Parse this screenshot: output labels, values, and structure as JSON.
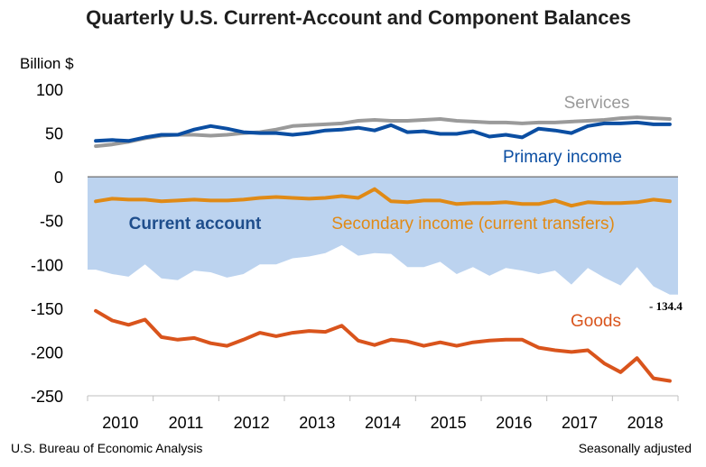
{
  "chart_data": {
    "type": "line",
    "title": "Quarterly U.S. Current-Account and Component Balances",
    "ylabel": "Billion $",
    "ylim": [
      -250,
      100
    ],
    "yticks": [
      "100",
      "50",
      "0",
      "-50",
      "-100",
      "-150",
      "-200",
      "-250"
    ],
    "xtick_labels": [
      "2010",
      "2011",
      "2012",
      "2013",
      "2014",
      "2015",
      "2016",
      "2017",
      "2018"
    ],
    "quarters": [
      "2010Q1",
      "2010Q2",
      "2010Q3",
      "2010Q4",
      "2011Q1",
      "2011Q2",
      "2011Q3",
      "2011Q4",
      "2012Q1",
      "2012Q2",
      "2012Q3",
      "2012Q4",
      "2013Q1",
      "2013Q2",
      "2013Q3",
      "2013Q4",
      "2014Q1",
      "2014Q2",
      "2014Q3",
      "2014Q4",
      "2015Q1",
      "2015Q2",
      "2015Q3",
      "2015Q4",
      "2016Q1",
      "2016Q2",
      "2016Q3",
      "2016Q4",
      "2017Q1",
      "2017Q2",
      "2017Q3",
      "2017Q4",
      "2018Q1",
      "2018Q2",
      "2018Q3",
      "2018Q4"
    ],
    "series": [
      {
        "name": "Services",
        "type": "line",
        "color": "#9a9a9a",
        "values": [
          35,
          37,
          40,
          44,
          47,
          48,
          48,
          47,
          48,
          50,
          51,
          54,
          58,
          59,
          60,
          61,
          64,
          65,
          64,
          64,
          65,
          66,
          64,
          63,
          62,
          62,
          61,
          62,
          62,
          63,
          64,
          65,
          67,
          68,
          67,
          66
        ]
      },
      {
        "name": "Primary income",
        "type": "line",
        "color": "#0b4ea2",
        "values": [
          41,
          42,
          41,
          45,
          48,
          48,
          54,
          58,
          55,
          51,
          50,
          50,
          48,
          50,
          53,
          54,
          56,
          53,
          59,
          51,
          52,
          49,
          49,
          52,
          46,
          48,
          45,
          55,
          53,
          50,
          58,
          61,
          61,
          62,
          60,
          60
        ]
      },
      {
        "name": "Secondary income (current transfers)",
        "type": "line",
        "color": "#e08a16",
        "values": [
          -28,
          -25,
          -26,
          -26,
          -28,
          -27,
          -26,
          -27,
          -27,
          -26,
          -24,
          -23,
          -24,
          -25,
          -24,
          -22,
          -24,
          -14,
          -28,
          -29,
          -27,
          -27,
          -31,
          -30,
          -30,
          -29,
          -31,
          -31,
          -27,
          -33,
          -29,
          -30,
          -30,
          -29,
          -26,
          -28
        ]
      },
      {
        "name": "Current account",
        "type": "area",
        "color": "#bcd3ef",
        "values": [
          -106,
          -111,
          -114,
          -100,
          -116,
          -118,
          -107,
          -109,
          -115,
          -111,
          -100,
          -100,
          -93,
          -91,
          -87,
          -78,
          -90,
          -87,
          -88,
          -103,
          -103,
          -97,
          -111,
          -103,
          -113,
          -104,
          -107,
          -111,
          -107,
          -123,
          -104,
          -115,
          -124,
          -103,
          -125,
          -134.4
        ]
      },
      {
        "name": "Goods",
        "type": "line",
        "color": "#d9541c",
        "values": [
          -153,
          -164,
          -169,
          -163,
          -183,
          -186,
          -184,
          -190,
          -193,
          -186,
          -178,
          -182,
          -178,
          -176,
          -177,
          -170,
          -187,
          -192,
          -186,
          -188,
          -193,
          -189,
          -193,
          -189,
          -187,
          -186,
          -186,
          -195,
          -198,
          -200,
          -198,
          -213,
          -223,
          -207,
          -230,
          -233
        ]
      }
    ],
    "annotations": [
      {
        "text": "- 134.4",
        "series": "Current account",
        "quarter": "2018Q4"
      }
    ],
    "grid": false,
    "legend": "inline labels"
  },
  "footer": {
    "source": "U.S. Bureau of Economic Analysis",
    "note": "Seasonally adjusted"
  }
}
